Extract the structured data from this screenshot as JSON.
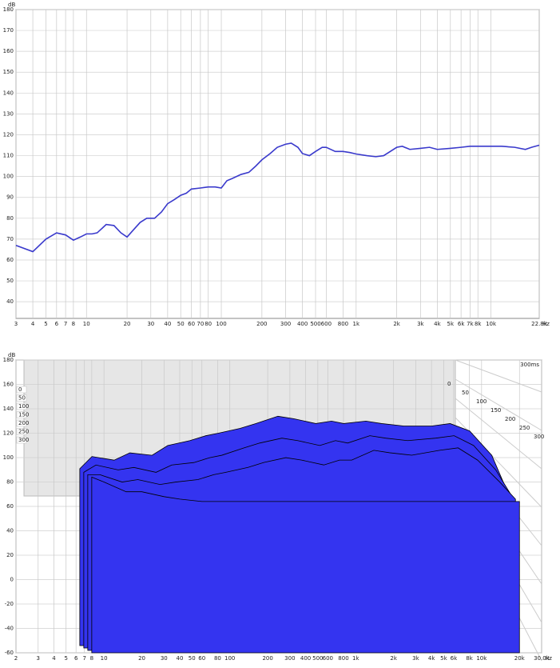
{
  "chart_data": [
    {
      "type": "line",
      "y_label": "dB",
      "x_unit": "Hz",
      "log_x": true,
      "grid": true,
      "xlim": [
        3,
        22800
      ],
      "ylim": [
        32,
        180
      ],
      "yticks": [
        40,
        50,
        60,
        70,
        80,
        90,
        100,
        110,
        120,
        130,
        140,
        150,
        160,
        170,
        180
      ],
      "xticks": [
        3,
        4,
        5,
        6,
        7,
        8,
        10,
        20,
        30,
        40,
        50,
        60,
        70,
        80,
        100,
        200,
        300,
        400,
        500,
        600,
        800,
        {
          "value": 1000,
          "label": "1k"
        },
        {
          "value": 2000,
          "label": "2k"
        },
        {
          "value": 3000,
          "label": "3k"
        },
        {
          "value": 4000,
          "label": "4k"
        },
        {
          "value": 5000,
          "label": "5k"
        },
        {
          "value": 6000,
          "label": "6k"
        },
        {
          "value": 7000,
          "label": "7k"
        },
        {
          "value": 8000,
          "label": "8k"
        },
        {
          "value": 10000,
          "label": "10k"
        },
        {
          "value": 22800,
          "label": "22.8k"
        }
      ],
      "x": [
        3,
        4,
        5,
        6,
        7,
        8,
        9,
        10,
        11,
        12,
        14,
        16,
        18,
        20,
        22,
        25,
        28,
        32,
        36,
        40,
        45,
        50,
        55,
        60,
        70,
        80,
        90,
        100,
        110,
        120,
        140,
        160,
        180,
        200,
        230,
        260,
        300,
        330,
        370,
        400,
        450,
        500,
        560,
        600,
        700,
        800,
        900,
        1000,
        1200,
        1400,
        1600,
        2000,
        2200,
        2500,
        3000,
        3500,
        4000,
        5000,
        6000,
        7000,
        8000,
        10000,
        12000,
        15000,
        18000,
        20000,
        22800
      ],
      "series": [
        {
          "color": "#3a3acc",
          "values": [
            67,
            64,
            70,
            73,
            72,
            69.5,
            71,
            72.5,
            72.5,
            73,
            77,
            76.5,
            73,
            71,
            74,
            78,
            80,
            80,
            83,
            87,
            89,
            91,
            92,
            94,
            94.5,
            95,
            95,
            94.5,
            98,
            99,
            101,
            102,
            105,
            108,
            111,
            114,
            115.5,
            116,
            114,
            111,
            110,
            112,
            114,
            114,
            112,
            112,
            111.5,
            110.8,
            110,
            109.5,
            110,
            114,
            114.5,
            113,
            113.5,
            114,
            113,
            113.5,
            114,
            114.5,
            114.5,
            114.5,
            114.5,
            114,
            113,
            114,
            115
          ]
        }
      ]
    },
    {
      "type": "waterfall",
      "y_label": "dB",
      "x_unit": "Hz",
      "time_label": "300ms",
      "log_x": true,
      "grid": true,
      "xlim": [
        2,
        30000
      ],
      "ylim": [
        -60,
        180
      ],
      "yticks": [
        -60,
        -40,
        -20,
        0,
        20,
        40,
        60,
        80,
        100,
        120,
        140,
        160,
        180
      ],
      "xticks": [
        2,
        3,
        4,
        5,
        6,
        7,
        8,
        10,
        20,
        30,
        40,
        50,
        60,
        80,
        100,
        200,
        300,
        400,
        500,
        600,
        800,
        {
          "value": 1000,
          "label": "1k"
        },
        {
          "value": 2000,
          "label": "2k"
        },
        {
          "value": 3000,
          "label": "3k"
        },
        {
          "value": 4000,
          "label": "4k"
        },
        {
          "value": 5000,
          "label": "5k"
        },
        {
          "value": 6000,
          "label": "6k"
        },
        {
          "value": 8000,
          "label": "8k"
        },
        {
          "value": 10000,
          "label": "10k"
        },
        {
          "value": 20000,
          "label": "20k"
        },
        {
          "value": 30000,
          "label": "30.0k"
        }
      ],
      "zticks": [
        0,
        50,
        100,
        150,
        200,
        250,
        300
      ],
      "color": "#3434f0",
      "x": [
        8,
        10,
        15,
        20,
        30,
        40,
        60,
        80,
        100,
        150,
        200,
        300,
        400,
        600,
        800,
        1000,
        1500,
        2000,
        3000,
        5000,
        7000,
        10000,
        15000,
        20000
      ],
      "series": [
        {
          "values": [
            85,
            95,
            92,
            98,
            96,
            104,
            108,
            112,
            114,
            118,
            122,
            128,
            126,
            122,
            124,
            122,
            124,
            122,
            120,
            120,
            122,
            116,
            96,
            66
          ]
        },
        {
          "values": [
            84,
            90,
            86,
            88,
            84,
            90,
            92,
            96,
            98,
            104,
            108,
            112,
            110,
            106,
            110,
            108,
            114,
            112,
            110,
            112,
            114,
            106,
            86,
            65
          ]
        },
        {
          "values": [
            84,
            84,
            78,
            80,
            76,
            78,
            80,
            84,
            86,
            90,
            94,
            98,
            96,
            92,
            96,
            96,
            104,
            102,
            100,
            104,
            106,
            96,
            78,
            64
          ]
        },
        {
          "values": [
            84,
            80,
            72,
            72,
            68,
            66,
            64,
            64,
            64,
            64,
            64,
            64,
            64,
            64,
            64,
            64,
            64,
            64,
            64,
            64,
            64,
            64,
            64,
            64
          ]
        }
      ]
    }
  ]
}
